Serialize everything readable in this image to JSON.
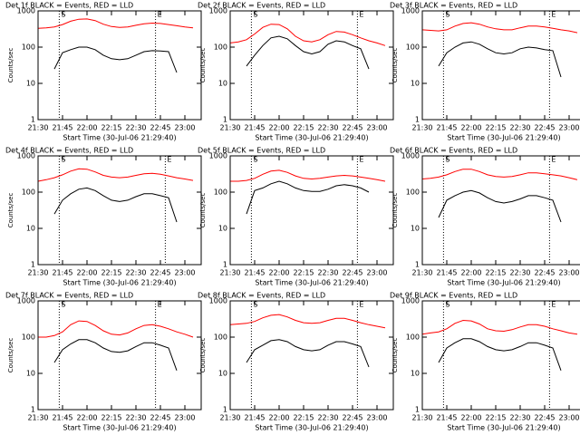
{
  "chart_data": [
    {
      "type": "line",
      "title": "Det 1f BLACK = Events, RED = LLD",
      "x_label": "Start Time (30-Jul-06 21:29:40)",
      "y_label": "Counts/sec",
      "log_y": true,
      "x": [
        "21:30",
        "21:35",
        "21:40",
        "21:45",
        "21:50",
        "21:55",
        "22:00",
        "22:05",
        "22:10",
        "22:15",
        "22:20",
        "22:25",
        "22:30",
        "22:35",
        "22:40",
        "22:45",
        "22:50",
        "22:55",
        "23:00",
        "23:05"
      ],
      "xlim": [
        "21:30",
        "23:10"
      ],
      "xticks": [
        "21:30",
        "21:45",
        "22:00",
        "22:15",
        "22:30",
        "22:45",
        "23:00"
      ],
      "ylim": [
        1,
        1000
      ],
      "yticks": [
        1,
        10,
        100,
        1000
      ],
      "markers": [
        {
          "x": "21:43",
          "label": "S"
        },
        {
          "x": "22:42",
          "label": "E"
        }
      ],
      "series": [
        {
          "color": "#ff0000",
          "values": [
            330,
            340,
            360,
            420,
            520,
            590,
            600,
            540,
            430,
            370,
            350,
            360,
            400,
            440,
            460,
            450,
            420,
            390,
            360,
            340
          ]
        },
        {
          "color": "#000000",
          "values": [
            null,
            null,
            25,
            70,
            85,
            100,
            100,
            85,
            60,
            48,
            45,
            48,
            60,
            75,
            80,
            78,
            75,
            20,
            null,
            null
          ]
        }
      ]
    },
    {
      "type": "line",
      "title": "Det 2f BLACK = Events, RED = LLD",
      "x_label": "Start Time (30-Jul-06 21:29:40)",
      "y_label": "Counts/sec",
      "log_y": true,
      "x": [
        "21:30",
        "21:35",
        "21:40",
        "21:45",
        "21:50",
        "21:55",
        "22:00",
        "22:05",
        "22:10",
        "22:15",
        "22:20",
        "22:25",
        "22:30",
        "22:35",
        "22:40",
        "22:45",
        "22:50",
        "22:55",
        "23:00",
        "23:05"
      ],
      "xlim": [
        "21:30",
        "23:10"
      ],
      "xticks": [
        "21:30",
        "21:45",
        "22:00",
        "22:15",
        "22:30",
        "22:45",
        "23:00"
      ],
      "ylim": [
        1,
        1000
      ],
      "yticks": [
        1,
        10,
        100,
        1000
      ],
      "markers": [
        {
          "x": "21:43",
          "label": "S"
        },
        {
          "x": "22:48",
          "label": "E"
        }
      ],
      "series": [
        {
          "color": "#ff0000",
          "values": [
            130,
            140,
            160,
            230,
            350,
            430,
            420,
            320,
            200,
            150,
            140,
            160,
            220,
            270,
            260,
            220,
            180,
            150,
            130,
            110
          ]
        },
        {
          "color": "#000000",
          "values": [
            null,
            null,
            30,
            60,
            110,
            180,
            200,
            170,
            110,
            75,
            65,
            75,
            120,
            150,
            140,
            110,
            90,
            25,
            null,
            null
          ]
        }
      ]
    },
    {
      "type": "line",
      "title": "Det 3f BLACK = Events, RED = LLD",
      "x_label": "Start Time (30-Jul-06 21:29:40)",
      "y_label": "Counts/sec",
      "log_y": true,
      "x": [
        "21:30",
        "21:35",
        "21:40",
        "21:45",
        "21:50",
        "21:55",
        "22:00",
        "22:05",
        "22:10",
        "22:15",
        "22:20",
        "22:25",
        "22:30",
        "22:35",
        "22:40",
        "22:45",
        "22:50",
        "22:55",
        "23:00",
        "23:05"
      ],
      "xlim": [
        "21:30",
        "23:10"
      ],
      "xticks": [
        "21:30",
        "21:45",
        "22:00",
        "22:15",
        "22:30",
        "22:45",
        "23:00"
      ],
      "ylim": [
        1,
        1000
      ],
      "yticks": [
        1,
        10,
        100,
        1000
      ],
      "markers": [
        {
          "x": "21:43",
          "label": "S"
        },
        {
          "x": "22:48",
          "label": "E"
        }
      ],
      "series": [
        {
          "color": "#ff0000",
          "values": [
            300,
            290,
            280,
            300,
            380,
            450,
            470,
            430,
            360,
            320,
            300,
            300,
            340,
            380,
            380,
            360,
            330,
            300,
            280,
            250
          ]
        },
        {
          "color": "#000000",
          "values": [
            null,
            null,
            30,
            70,
            100,
            130,
            140,
            120,
            90,
            70,
            65,
            70,
            90,
            100,
            95,
            85,
            80,
            15,
            null,
            null
          ]
        }
      ]
    },
    {
      "type": "line",
      "title": "Det 4f BLACK = Events, RED = LLD",
      "x_label": "Start Time (30-Jul-06 21:29:40)",
      "y_label": "Counts/sec",
      "log_y": true,
      "x": [
        "21:30",
        "21:35",
        "21:40",
        "21:45",
        "21:50",
        "21:55",
        "22:00",
        "22:05",
        "22:10",
        "22:15",
        "22:20",
        "22:25",
        "22:30",
        "22:35",
        "22:40",
        "22:45",
        "22:50",
        "22:55",
        "23:00",
        "23:05"
      ],
      "xlim": [
        "21:30",
        "23:10"
      ],
      "xticks": [
        "21:30",
        "21:45",
        "22:00",
        "22:15",
        "22:30",
        "22:45",
        "23:00"
      ],
      "ylim": [
        1,
        1000
      ],
      "yticks": [
        1,
        10,
        100,
        1000
      ],
      "markers": [
        {
          "x": "21:43",
          "label": "S"
        },
        {
          "x": "22:48",
          "label": "E"
        }
      ],
      "series": [
        {
          "color": "#ff0000",
          "values": [
            200,
            220,
            250,
            300,
            380,
            440,
            430,
            360,
            290,
            260,
            250,
            260,
            290,
            320,
            330,
            310,
            280,
            250,
            230,
            210
          ]
        },
        {
          "color": "#000000",
          "values": [
            null,
            null,
            25,
            60,
            90,
            120,
            130,
            110,
            80,
            60,
            55,
            60,
            75,
            90,
            90,
            80,
            70,
            15,
            null,
            null
          ]
        }
      ]
    },
    {
      "type": "line",
      "title": "Det 5f BLACK = Events, RED = LLD",
      "x_label": "Start Time (30-Jul-06 21:29:40)",
      "y_label": "Counts/sec",
      "log_y": true,
      "x": [
        "21:30",
        "21:35",
        "21:40",
        "21:45",
        "21:50",
        "21:55",
        "22:00",
        "22:05",
        "22:10",
        "22:15",
        "22:20",
        "22:25",
        "22:30",
        "22:35",
        "22:40",
        "22:45",
        "22:50",
        "22:55",
        "23:00",
        "23:05"
      ],
      "xlim": [
        "21:30",
        "23:10"
      ],
      "xticks": [
        "21:30",
        "21:45",
        "22:00",
        "22:15",
        "22:30",
        "22:45",
        "23:00"
      ],
      "ylim": [
        1,
        1000
      ],
      "yticks": [
        1,
        10,
        100,
        1000
      ],
      "markers": [
        {
          "x": "21:43",
          "label": "S"
        },
        {
          "x": "22:48",
          "label": "E"
        }
      ],
      "series": [
        {
          "color": "#ff0000",
          "values": [
            200,
            200,
            210,
            240,
            310,
            380,
            400,
            350,
            280,
            240,
            230,
            240,
            260,
            280,
            290,
            280,
            260,
            240,
            220,
            200
          ]
        },
        {
          "color": "#000000",
          "values": [
            null,
            null,
            25,
            110,
            130,
            170,
            200,
            170,
            130,
            110,
            105,
            105,
            120,
            150,
            160,
            150,
            130,
            100,
            null,
            null
          ]
        }
      ]
    },
    {
      "type": "line",
      "title": "Det 6f BLACK = Events, RED = LLD",
      "x_label": "Start Time (30-Jul-06 21:29:40)",
      "y_label": "Counts/sec",
      "log_y": true,
      "x": [
        "21:30",
        "21:35",
        "21:40",
        "21:45",
        "21:50",
        "21:55",
        "22:00",
        "22:05",
        "22:10",
        "22:15",
        "22:20",
        "22:25",
        "22:30",
        "22:35",
        "22:40",
        "22:45",
        "22:50",
        "22:55",
        "23:00",
        "23:05"
      ],
      "xlim": [
        "21:30",
        "23:10"
      ],
      "xticks": [
        "21:30",
        "21:45",
        "22:00",
        "22:15",
        "22:30",
        "22:45",
        "23:00"
      ],
      "ylim": [
        1,
        1000
      ],
      "yticks": [
        1,
        10,
        100,
        1000
      ],
      "markers": [
        {
          "x": "21:43",
          "label": "S"
        },
        {
          "x": "22:48",
          "label": "E"
        }
      ],
      "series": [
        {
          "color": "#ff0000",
          "values": [
            230,
            240,
            260,
            300,
            370,
            430,
            430,
            370,
            300,
            270,
            260,
            270,
            300,
            340,
            340,
            320,
            300,
            280,
            250,
            220
          ]
        },
        {
          "color": "#000000",
          "values": [
            null,
            null,
            20,
            60,
            80,
            100,
            110,
            95,
            70,
            55,
            50,
            55,
            65,
            80,
            80,
            70,
            60,
            15,
            null,
            null
          ]
        }
      ]
    },
    {
      "type": "line",
      "title": "Det 7f BLACK = Events, RED = LLD",
      "x_label": "Start Time (30-Jul-06 21:29:40)",
      "y_label": "Counts/sec",
      "log_y": true,
      "x": [
        "21:30",
        "21:35",
        "21:40",
        "21:45",
        "21:50",
        "21:55",
        "22:00",
        "22:05",
        "22:10",
        "22:15",
        "22:20",
        "22:25",
        "22:30",
        "22:35",
        "22:40",
        "22:45",
        "22:50",
        "22:55",
        "23:00",
        "23:05"
      ],
      "xlim": [
        "21:30",
        "23:10"
      ],
      "xticks": [
        "21:30",
        "21:45",
        "22:00",
        "22:15",
        "22:30",
        "22:45",
        "23:00"
      ],
      "ylim": [
        1,
        1000
      ],
      "yticks": [
        1,
        10,
        100,
        1000
      ],
      "markers": [
        {
          "x": "21:43",
          "label": "S"
        },
        {
          "x": "22:42",
          "label": "E"
        }
      ],
      "series": [
        {
          "color": "#ff0000",
          "values": [
            100,
            100,
            110,
            140,
            220,
            280,
            270,
            210,
            150,
            120,
            115,
            130,
            170,
            210,
            220,
            200,
            170,
            140,
            120,
            100
          ]
        },
        {
          "color": "#000000",
          "values": [
            null,
            null,
            20,
            45,
            65,
            85,
            85,
            70,
            50,
            40,
            38,
            42,
            55,
            70,
            70,
            60,
            50,
            12,
            null,
            null
          ]
        }
      ]
    },
    {
      "type": "line",
      "title": "Det 8f BLACK = Events, RED = LLD",
      "x_label": "Start Time (30-Jul-06 21:29:40)",
      "y_label": "Counts/sec",
      "log_y": true,
      "x": [
        "21:30",
        "21:35",
        "21:40",
        "21:45",
        "21:50",
        "21:55",
        "22:00",
        "22:05",
        "22:10",
        "22:15",
        "22:20",
        "22:25",
        "22:30",
        "22:35",
        "22:40",
        "22:45",
        "22:50",
        "22:55",
        "23:00",
        "23:05"
      ],
      "xlim": [
        "21:30",
        "23:10"
      ],
      "xticks": [
        "21:30",
        "21:45",
        "22:00",
        "22:15",
        "22:30",
        "22:45",
        "23:00"
      ],
      "ylim": [
        1,
        1000
      ],
      "yticks": [
        1,
        10,
        100,
        1000
      ],
      "markers": [
        {
          "x": "21:43",
          "label": "S"
        },
        {
          "x": "22:48",
          "label": "E"
        }
      ],
      "series": [
        {
          "color": "#ff0000",
          "values": [
            220,
            230,
            240,
            270,
            340,
            400,
            420,
            360,
            290,
            250,
            240,
            250,
            290,
            330,
            330,
            290,
            250,
            220,
            200,
            180
          ]
        },
        {
          "color": "#000000",
          "values": [
            null,
            null,
            20,
            45,
            60,
            80,
            85,
            75,
            55,
            45,
            42,
            45,
            60,
            75,
            75,
            65,
            55,
            15,
            null,
            null
          ]
        }
      ]
    },
    {
      "type": "line",
      "title": "Det 9f BLACK = Events, RED = LLD",
      "x_label": "Start Time (30-Jul-06 21:29:40)",
      "y_label": "Counts/sec",
      "log_y": true,
      "x": [
        "21:30",
        "21:35",
        "21:40",
        "21:45",
        "21:50",
        "21:55",
        "22:00",
        "22:05",
        "22:10",
        "22:15",
        "22:20",
        "22:25",
        "22:30",
        "22:35",
        "22:40",
        "22:45",
        "22:50",
        "22:55",
        "23:00",
        "23:05"
      ],
      "xlim": [
        "21:30",
        "23:10"
      ],
      "xticks": [
        "21:30",
        "21:45",
        "22:00",
        "22:15",
        "22:30",
        "22:45",
        "23:00"
      ],
      "ylim": [
        1,
        1000
      ],
      "yticks": [
        1,
        10,
        100,
        1000
      ],
      "markers": [
        {
          "x": "21:43",
          "label": "S"
        },
        {
          "x": "22:48",
          "label": "E"
        }
      ],
      "series": [
        {
          "color": "#ff0000",
          "values": [
            120,
            130,
            140,
            170,
            240,
            290,
            280,
            230,
            170,
            150,
            145,
            160,
            190,
            220,
            220,
            200,
            170,
            150,
            130,
            120
          ]
        },
        {
          "color": "#000000",
          "values": [
            null,
            null,
            20,
            50,
            70,
            90,
            90,
            75,
            55,
            45,
            42,
            45,
            55,
            70,
            70,
            60,
            50,
            12,
            null,
            null
          ]
        }
      ]
    }
  ]
}
